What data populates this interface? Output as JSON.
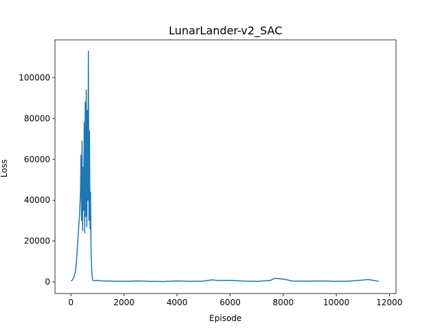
{
  "chart_data": {
    "type": "line",
    "title": "LunarLander-v2_SAC",
    "xlabel": "Episode",
    "ylabel": "Loss",
    "xlim": [
      -600,
      12250
    ],
    "ylim": [
      -5700,
      118500
    ],
    "xticks": [
      0,
      2000,
      4000,
      6000,
      8000,
      10000,
      12000
    ],
    "yticks": [
      0,
      20000,
      40000,
      60000,
      80000,
      100000
    ],
    "grid": false,
    "series_color": "#1f77b4",
    "series": [
      {
        "x": [
          0,
          60,
          120,
          180,
          220,
          260,
          300,
          330,
          360,
          380,
          400,
          420,
          440,
          460,
          480,
          500,
          520,
          540,
          560,
          580,
          600,
          620,
          640,
          660,
          680,
          700,
          720,
          740,
          760,
          790,
          820,
          900,
          1000,
          1200,
          1500,
          2000,
          2500,
          3000,
          3500,
          4000,
          4500,
          5000,
          5300,
          5600,
          6000,
          6500,
          7000,
          7500,
          7700,
          7900,
          8100,
          8300,
          8600,
          9000,
          9500,
          10000,
          10500,
          11000,
          11200,
          11400,
          11600
        ],
        "y": [
          500,
          1000,
          2500,
          6000,
          12000,
          20000,
          28000,
          34000,
          45000,
          62000,
          30000,
          69000,
          25000,
          56000,
          35000,
          78000,
          24000,
          88000,
          32000,
          94000,
          27000,
          84000,
          40000,
          113000,
          30000,
          74000,
          26000,
          44000,
          14000,
          4000,
          800,
          600,
          700,
          500,
          400,
          300,
          500,
          300,
          200,
          500,
          300,
          400,
          1000,
          700,
          800,
          400,
          300,
          700,
          1800,
          1500,
          1200,
          500,
          400,
          400,
          500,
          300,
          400,
          900,
          1200,
          800,
          300
        ]
      }
    ]
  }
}
